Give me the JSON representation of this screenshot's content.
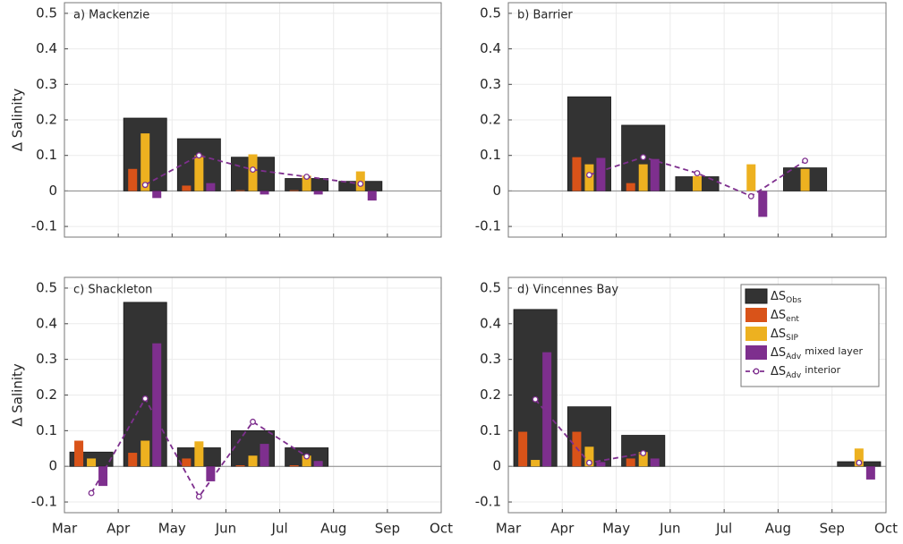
{
  "chart_data": [
    {
      "type": "bar",
      "title": "a) Mackenzie",
      "ylabel": "Δ Salinity",
      "x": [
        3.5,
        4.5,
        5.5,
        6.5,
        7.5,
        8.5,
        9.5
      ],
      "xlim": [
        3,
        10
      ],
      "xticks": [
        3,
        4,
        5,
        6,
        7,
        8,
        9,
        10
      ],
      "ylim": [
        -0.13,
        0.53
      ],
      "yticks": [
        -0.1,
        0,
        0.1,
        0.2,
        0.3,
        0.4,
        0.5
      ],
      "grid": true,
      "series": [
        {
          "type": "bar",
          "color": "#333333",
          "values": [
            null,
            0.205,
            0.147,
            0.095,
            0.035,
            0.027,
            null
          ]
        },
        {
          "type": "bar",
          "color": "#d95319",
          "values": [
            null,
            0.062,
            0.015,
            0.002,
            0.002,
            null,
            null
          ]
        },
        {
          "type": "bar",
          "color": "#edb120",
          "values": [
            null,
            0.162,
            0.1,
            0.103,
            0.043,
            0.055,
            null
          ]
        },
        {
          "type": "bar",
          "color": "#7e2f8e",
          "values": [
            null,
            -0.02,
            0.022,
            -0.01,
            -0.01,
            -0.027,
            null
          ]
        },
        {
          "type": "line",
          "color": "#7e2f8e",
          "values": [
            null,
            0.017,
            0.1,
            0.06,
            0.04,
            0.02,
            null
          ]
        }
      ]
    },
    {
      "type": "bar",
      "title": "b) Barrier",
      "x": [
        3.5,
        4.5,
        5.5,
        6.5,
        7.5,
        8.5,
        9.5
      ],
      "xlim": [
        3,
        10
      ],
      "xticks": [
        3,
        4,
        5,
        6,
        7,
        8,
        9,
        10
      ],
      "ylim": [
        -0.13,
        0.53
      ],
      "yticks": [
        -0.1,
        0,
        0.1,
        0.2,
        0.3,
        0.4,
        0.5
      ],
      "grid": true,
      "series": [
        {
          "type": "bar",
          "color": "#333333",
          "values": [
            null,
            0.265,
            0.185,
            0.04,
            null,
            0.065,
            null
          ]
        },
        {
          "type": "bar",
          "color": "#d95319",
          "values": [
            null,
            0.095,
            0.022,
            null,
            null,
            null,
            null
          ]
        },
        {
          "type": "bar",
          "color": "#edb120",
          "values": [
            null,
            0.075,
            0.075,
            0.042,
            0.075,
            0.062,
            null
          ]
        },
        {
          "type": "bar",
          "color": "#7e2f8e",
          "values": [
            null,
            0.093,
            0.09,
            null,
            -0.073,
            null,
            null
          ]
        },
        {
          "type": "line",
          "color": "#7e2f8e",
          "values": [
            null,
            0.045,
            0.095,
            0.05,
            -0.015,
            0.085,
            null
          ]
        }
      ]
    },
    {
      "type": "bar",
      "title": "c) Shackleton",
      "ylabel": "Δ Salinity",
      "x": [
        3.5,
        4.5,
        5.5,
        6.5,
        7.5,
        8.5,
        9.5
      ],
      "xlim": [
        3,
        10
      ],
      "xticks": [
        {
          "value": 3,
          "label": "Mar"
        },
        {
          "value": 4,
          "label": "Apr"
        },
        {
          "value": 5,
          "label": "May"
        },
        {
          "value": 6,
          "label": "Jun"
        },
        {
          "value": 7,
          "label": "Jul"
        },
        {
          "value": 8,
          "label": "Aug"
        },
        {
          "value": 9,
          "label": "Sep"
        },
        {
          "value": 10,
          "label": "Oct"
        }
      ],
      "ylim": [
        -0.13,
        0.53
      ],
      "yticks": [
        -0.1,
        0,
        0.1,
        0.2,
        0.3,
        0.4,
        0.5
      ],
      "grid": true,
      "series": [
        {
          "type": "bar",
          "color": "#333333",
          "values": [
            0.04,
            0.46,
            0.052,
            0.1,
            0.052,
            null,
            null
          ]
        },
        {
          "type": "bar",
          "color": "#d95319",
          "values": [
            0.072,
            0.038,
            0.022,
            0.003,
            0.003,
            null,
            null
          ]
        },
        {
          "type": "bar",
          "color": "#edb120",
          "values": [
            0.022,
            0.072,
            0.07,
            0.03,
            0.03,
            null,
            null
          ]
        },
        {
          "type": "bar",
          "color": "#7e2f8e",
          "values": [
            -0.055,
            0.345,
            -0.042,
            0.063,
            0.015,
            null,
            null
          ]
        },
        {
          "type": "line",
          "color": "#7e2f8e",
          "values": [
            -0.075,
            0.19,
            -0.085,
            0.125,
            0.028,
            null,
            null
          ]
        }
      ]
    },
    {
      "type": "bar",
      "title": "d) Vincennes Bay",
      "x": [
        3.5,
        4.5,
        5.5,
        6.5,
        7.5,
        8.5,
        9.5
      ],
      "xlim": [
        3,
        10
      ],
      "xticks": [
        {
          "value": 3,
          "label": "Mar"
        },
        {
          "value": 4,
          "label": "Apr"
        },
        {
          "value": 5,
          "label": "May"
        },
        {
          "value": 6,
          "label": "Jun"
        },
        {
          "value": 7,
          "label": "Jul"
        },
        {
          "value": 8,
          "label": "Aug"
        },
        {
          "value": 9,
          "label": "Sep"
        },
        {
          "value": 10,
          "label": "Oct"
        }
      ],
      "ylim": [
        -0.13,
        0.53
      ],
      "yticks": [
        -0.1,
        0,
        0.1,
        0.2,
        0.3,
        0.4,
        0.5
      ],
      "grid": true,
      "legend": "upper right",
      "series": [
        {
          "type": "bar",
          "name": "ΔS",
          "sub": "Obs",
          "color": "#333333",
          "values": [
            0.44,
            0.167,
            0.087,
            null,
            null,
            null,
            0.013
          ]
        },
        {
          "type": "bar",
          "name": "ΔS",
          "sub": "ent",
          "color": "#d95319",
          "values": [
            0.097,
            0.097,
            0.022,
            null,
            null,
            null,
            null
          ]
        },
        {
          "type": "bar",
          "name": "ΔS",
          "sub": "SIP",
          "color": "#edb120",
          "values": [
            0.018,
            0.055,
            0.04,
            null,
            null,
            null,
            0.05
          ]
        },
        {
          "type": "bar",
          "name": "ΔS",
          "sub": "Adv",
          "suffix": "mixed layer",
          "color": "#7e2f8e",
          "values": [
            0.32,
            0.012,
            0.022,
            null,
            null,
            null,
            -0.037
          ]
        },
        {
          "type": "line",
          "name": "ΔS",
          "sub": "Adv",
          "suffix": "interior",
          "color": "#7e2f8e",
          "values": [
            0.188,
            0.01,
            0.037,
            null,
            null,
            null,
            0.01
          ]
        }
      ]
    }
  ]
}
